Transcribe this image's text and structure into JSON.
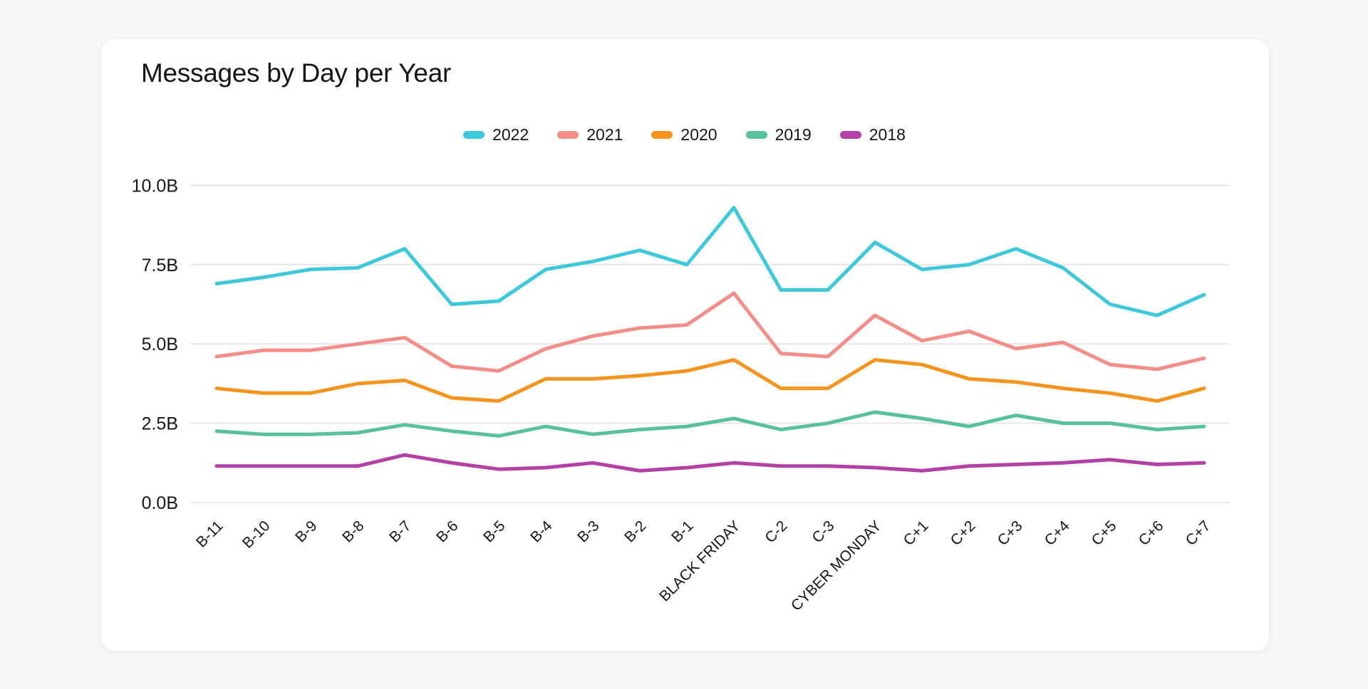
{
  "page": {
    "background": "#f7f8fa",
    "card_background": "#ffffff"
  },
  "header": {
    "title": "Messages by Day per Year"
  },
  "chart_data": {
    "type": "line",
    "title": "Messages by Day per Year",
    "grid": true,
    "legend_position": "top",
    "unit": "B",
    "ylim": [
      0,
      10
    ],
    "y_ticks": [
      {
        "label": "0.0B",
        "value": 0
      },
      {
        "label": "2.5B",
        "value": 2.5
      },
      {
        "label": "5.0B",
        "value": 5
      },
      {
        "label": "7.5B",
        "value": 7.5
      },
      {
        "label": "10.0B",
        "value": 10
      }
    ],
    "categories": [
      "B-11",
      "B-10",
      "B-9",
      "B-8",
      "B-7",
      "B-6",
      "B-5",
      "B-4",
      "B-3",
      "B-2",
      "B-1",
      "BLACK FRIDAY",
      "C-2",
      "C-3",
      "CYBER MONDAY",
      "C+1",
      "C+2",
      "C+3",
      "C+4",
      "C+5",
      "C+6",
      "C+7"
    ],
    "series": [
      {
        "name": "2022",
        "color": "#3ec9db",
        "values": [
          6.9,
          7.1,
          7.35,
          7.4,
          8.0,
          6.25,
          6.35,
          7.35,
          7.6,
          7.95,
          7.5,
          9.3,
          6.7,
          6.7,
          8.2,
          7.35,
          7.5,
          8.0,
          7.4,
          6.25,
          5.9,
          6.55
        ]
      },
      {
        "name": "2021",
        "color": "#f58d88",
        "values": [
          4.6,
          4.8,
          4.8,
          5.0,
          5.2,
          4.3,
          4.15,
          4.85,
          5.25,
          5.5,
          5.6,
          6.6,
          4.7,
          4.6,
          5.9,
          5.1,
          5.4,
          4.85,
          5.05,
          4.35,
          4.2,
          4.55
        ]
      },
      {
        "name": "2020",
        "color": "#f7941d",
        "values": [
          3.6,
          3.45,
          3.45,
          3.75,
          3.85,
          3.3,
          3.2,
          3.9,
          3.9,
          4.0,
          4.15,
          4.5,
          3.6,
          3.6,
          4.5,
          4.35,
          3.9,
          3.8,
          3.6,
          3.45,
          3.2,
          3.6
        ]
      },
      {
        "name": "2019",
        "color": "#57c19d",
        "values": [
          2.25,
          2.15,
          2.15,
          2.2,
          2.45,
          2.25,
          2.1,
          2.4,
          2.15,
          2.3,
          2.4,
          2.65,
          2.3,
          2.5,
          2.85,
          2.65,
          2.4,
          2.75,
          2.5,
          2.5,
          2.3,
          2.4
        ]
      },
      {
        "name": "2018",
        "color": "#b43fa5",
        "values": [
          1.15,
          1.15,
          1.15,
          1.15,
          1.5,
          1.25,
          1.05,
          1.1,
          1.25,
          1.0,
          1.1,
          1.25,
          1.15,
          1.15,
          1.1,
          1.0,
          1.15,
          1.2,
          1.25,
          1.35,
          1.2,
          1.25
        ]
      }
    ]
  }
}
